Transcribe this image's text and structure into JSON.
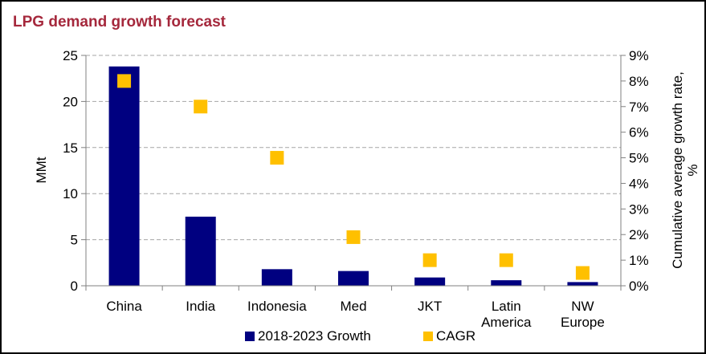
{
  "chart_data": {
    "type": "bar",
    "title": "LPG demand growth forecast",
    "categories": [
      "China",
      "India",
      "Indonesia",
      "Med",
      "JKT",
      "Latin America",
      "NW Europe"
    ],
    "category_label_lines": [
      [
        "China"
      ],
      [
        "India"
      ],
      [
        "Indonesia"
      ],
      [
        "Med"
      ],
      [
        "JKT"
      ],
      [
        "Latin",
        "America"
      ],
      [
        "NW",
        "Europe"
      ]
    ],
    "series": [
      {
        "name": "2018-2023 Growth",
        "type": "bar",
        "axis": "left",
        "values": [
          23.8,
          7.5,
          1.8,
          1.6,
          0.9,
          0.6,
          0.4
        ],
        "color": "#000080"
      },
      {
        "name": "CAGR",
        "type": "scatter",
        "axis": "right",
        "values": [
          8.0,
          7.0,
          5.0,
          1.9,
          1.0,
          1.0,
          0.5
        ],
        "color": "#ffc000"
      }
    ],
    "ylabel": "MMt",
    "ylim": [
      0,
      25
    ],
    "yticks": [
      0,
      5,
      10,
      15,
      20,
      25
    ],
    "y2label_lines": [
      "Cumulative average growth rate,",
      "%"
    ],
    "y2lim": [
      0,
      9
    ],
    "y2ticks": [
      "0%",
      "1%",
      "2%",
      "3%",
      "4%",
      "5%",
      "6%",
      "7%",
      "8%",
      "9%"
    ],
    "grid": "horizontal dashed",
    "legend": "bottom-center"
  }
}
